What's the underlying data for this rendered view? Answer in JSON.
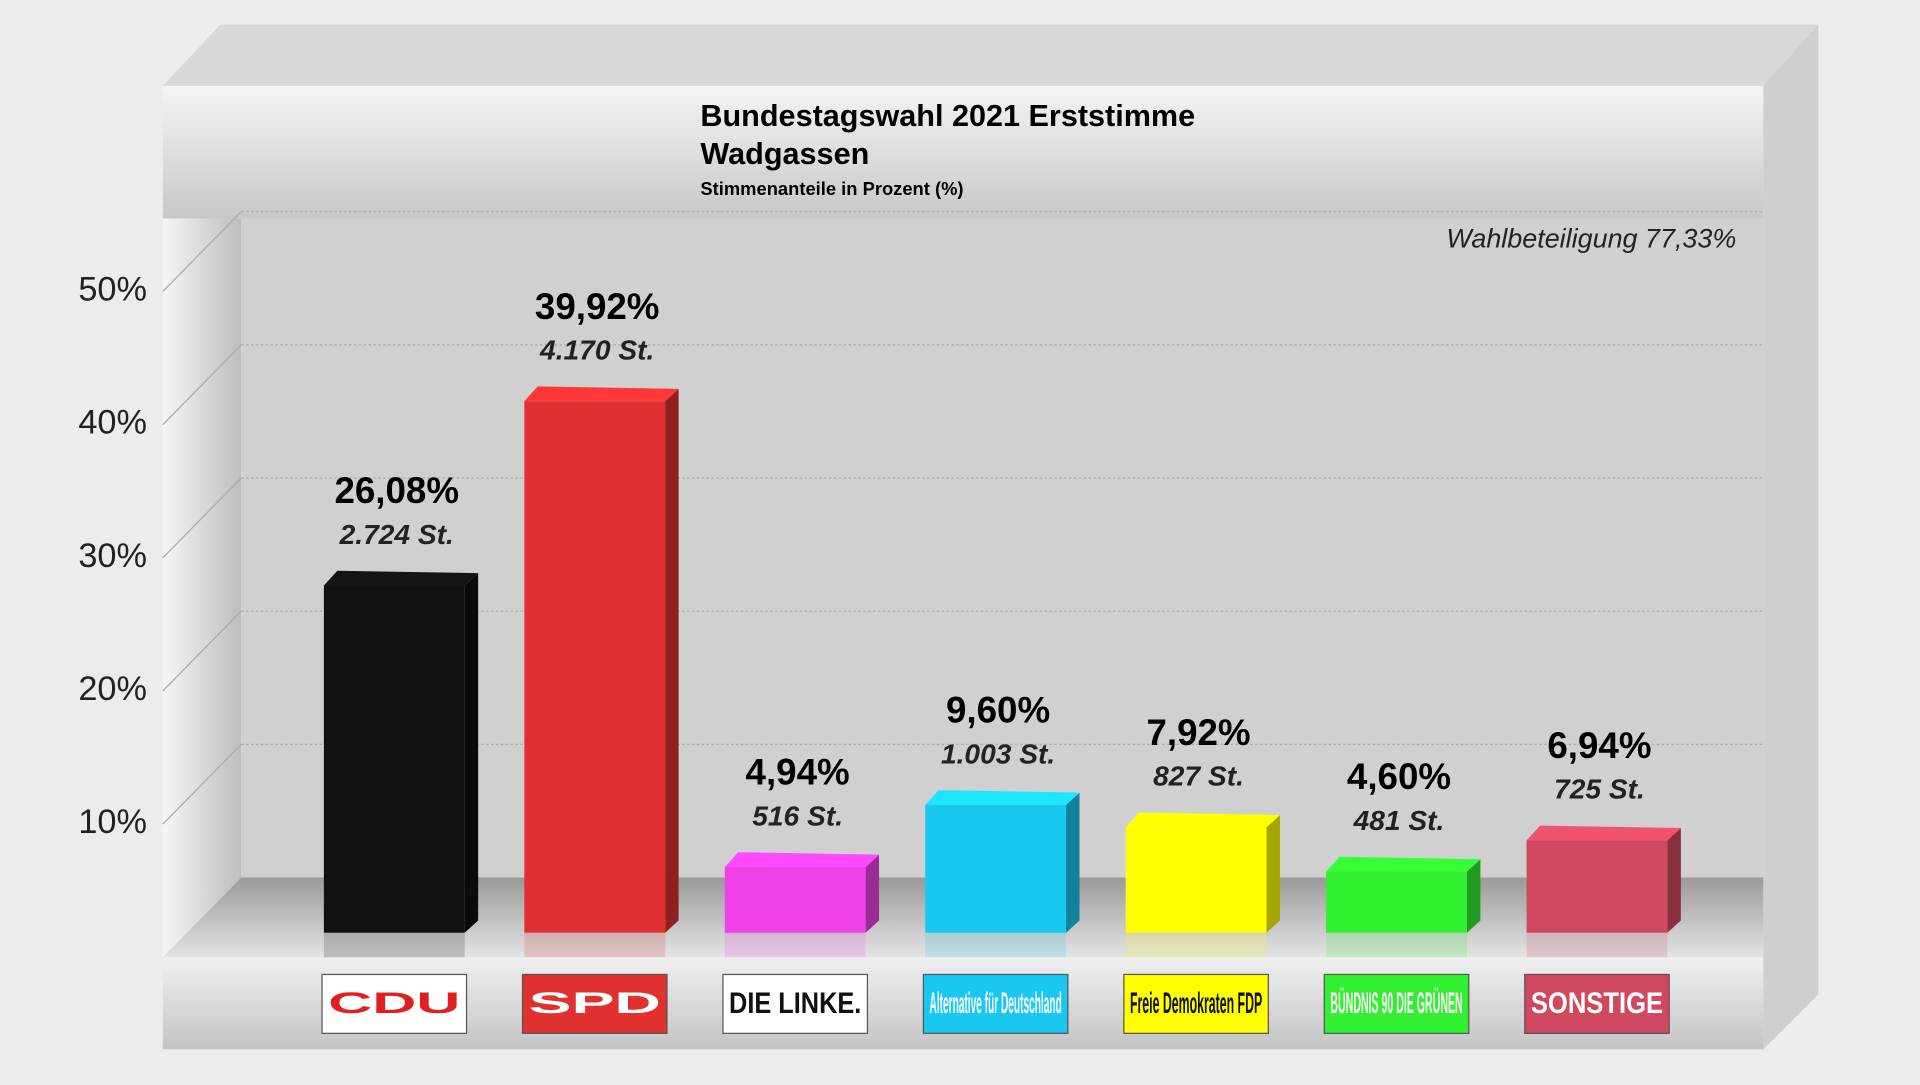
{
  "chart_data": {
    "type": "bar3d",
    "title": "Bundestagswahl 2021 Erststimme",
    "subtitle": "Wadgassen",
    "caption": "Stimmenanteile in Prozent (%)",
    "annotation": "Wahlbeteiligung 77,33%",
    "categories": [
      "CDU",
      "SPD",
      "DIE LINKE.",
      "Alternative für Deutschland",
      "Freie Demokraten FDP",
      "BÜNDNIS 90 DIE GRÜNEN",
      "SONSTIGE"
    ],
    "values": [
      26.08,
      39.92,
      4.94,
      9.6,
      7.92,
      4.6,
      6.94
    ],
    "value_labels": [
      "26,08%",
      "39,92%",
      "4,94%",
      "9,60%",
      "7,92%",
      "4,60%",
      "6,94%"
    ],
    "votes": [
      2724,
      4170,
      516,
      1003,
      827,
      481,
      725
    ],
    "vote_labels": [
      "2.724 St.",
      "4.170 St.",
      "516 St.",
      "1.003 St.",
      "827 St.",
      "481 St.",
      "725 St."
    ],
    "colors": [
      "#111111",
      "#e03030",
      "#f040e8",
      "#18c8f0",
      "#ffff00",
      "#30f030",
      "#d04860"
    ],
    "ylim": [
      0,
      55
    ],
    "yticks": [
      {
        "value": 10,
        "label": "10%"
      },
      {
        "value": 20,
        "label": "20%"
      },
      {
        "value": 30,
        "label": "30%"
      },
      {
        "value": 40,
        "label": "40%"
      },
      {
        "value": 50,
        "label": "50%"
      }
    ],
    "grid": true
  }
}
